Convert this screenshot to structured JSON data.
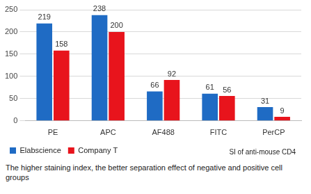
{
  "chart_data": {
    "type": "bar",
    "categories": [
      "PE",
      "APC",
      "AF488",
      "FITC",
      "PerCP"
    ],
    "series": [
      {
        "name": "Elabscience",
        "color": "#1f6bc4",
        "values": [
          219,
          238,
          66,
          61,
          31
        ]
      },
      {
        "name": "Company T",
        "color": "#e8141c",
        "values": [
          158,
          200,
          92,
          56,
          9
        ]
      }
    ],
    "ylim": [
      0,
      250
    ],
    "yticks": [
      0,
      50,
      100,
      150,
      200,
      250
    ],
    "grid": true,
    "data_labels": true,
    "legend": "bottom",
    "annotations": [
      "SI of anti-mouse CD4",
      "The higher staining index, the better separation effect of negative and positive cell groups"
    ]
  }
}
